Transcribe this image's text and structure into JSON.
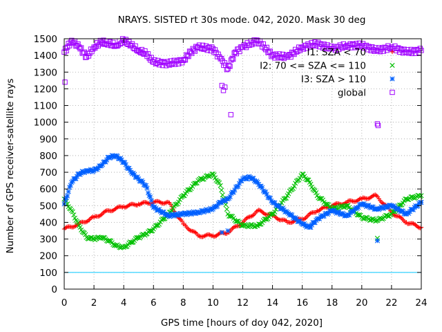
{
  "chart_data": {
    "type": "scatter",
    "title": "NRAYS. SISTED rt 30s mode. 042, 2020. Mask 30 deg",
    "xlabel": "GPS time [hours of doy 042, 2020]",
    "ylabel": "Number of GPS receiver-satellite rays",
    "xlim": [
      0,
      24
    ],
    "ylim": [
      0,
      1500
    ],
    "x_ticks": [
      0,
      2,
      4,
      6,
      8,
      10,
      12,
      14,
      16,
      18,
      20,
      22,
      24
    ],
    "y_ticks": [
      0,
      100,
      200,
      300,
      400,
      500,
      600,
      700,
      800,
      900,
      1000,
      1100,
      1200,
      1300,
      1400,
      1500
    ],
    "grid": true,
    "legend_position": "top-right",
    "reference_line": {
      "value": 100,
      "color": "#00c8ff"
    },
    "series": [
      {
        "name": "I1: SZA < 70",
        "color": "#ff0000",
        "marker": "plus",
        "x": [
          0,
          1,
          2,
          3,
          4,
          5,
          6,
          7,
          8,
          9,
          10,
          11,
          12,
          13,
          14,
          15,
          16,
          17,
          18,
          19,
          20,
          21,
          22,
          23,
          24
        ],
        "y": [
          360,
          390,
          430,
          470,
          495,
          510,
          520,
          520,
          390,
          320,
          320,
          340,
          400,
          470,
          440,
          400,
          420,
          470,
          500,
          520,
          540,
          560,
          460,
          400,
          370
        ]
      },
      {
        "name": "I2: 70 <= SZA <= 110",
        "color": "#00c000",
        "marker": "cross",
        "x": [
          0,
          0.5,
          1,
          1.5,
          2,
          2.5,
          3,
          3.5,
          4,
          4.5,
          5,
          5.5,
          6,
          7,
          8,
          9,
          10,
          10.5,
          11,
          12,
          13,
          14,
          15,
          16,
          16.5,
          17,
          18,
          19,
          20,
          21,
          22,
          23,
          24
        ],
        "y": [
          540,
          470,
          380,
          310,
          300,
          310,
          290,
          260,
          250,
          280,
          310,
          330,
          360,
          450,
          560,
          650,
          690,
          620,
          450,
          380,
          380,
          450,
          560,
          690,
          640,
          560,
          480,
          500,
          430,
          410,
          450,
          540,
          560
        ]
      },
      {
        "name": "I3: SZA > 110",
        "color": "#0060ff",
        "marker": "star",
        "x": [
          0,
          0.5,
          1,
          1.5,
          2,
          2.5,
          3,
          3.5,
          4,
          4.5,
          5,
          5.5,
          6,
          7,
          8,
          9,
          10,
          10.5,
          11,
          12,
          12.5,
          13,
          14,
          15,
          16,
          16.5,
          17,
          18,
          19,
          20,
          21,
          22,
          23,
          24
        ],
        "y": [
          510,
          640,
          690,
          710,
          710,
          740,
          790,
          800,
          760,
          700,
          660,
          620,
          490,
          440,
          450,
          460,
          480,
          520,
          540,
          660,
          670,
          640,
          520,
          460,
          390,
          370,
          420,
          470,
          440,
          510,
          480,
          500,
          450,
          520
        ]
      },
      {
        "name": "global",
        "color": "#a000ff",
        "marker": "square",
        "x": [
          0,
          0.5,
          1,
          1.5,
          2,
          2.5,
          3,
          3.5,
          4,
          4.5,
          5,
          5.5,
          6,
          7,
          8,
          8.5,
          9,
          10,
          10.5,
          11,
          11.5,
          12,
          13,
          14,
          15,
          16,
          17,
          18,
          19,
          20,
          21,
          22,
          23,
          24
        ],
        "y": [
          1420,
          1490,
          1450,
          1390,
          1450,
          1480,
          1470,
          1460,
          1490,
          1460,
          1430,
          1410,
          1360,
          1350,
          1370,
          1420,
          1450,
          1440,
          1380,
          1320,
          1420,
          1450,
          1490,
          1400,
          1390,
          1450,
          1470,
          1440,
          1460,
          1460,
          1430,
          1450,
          1420,
          1430
        ]
      }
    ],
    "outliers": [
      {
        "series": "global",
        "x": 0.05,
        "y": 1240
      },
      {
        "series": "global",
        "x": 10.6,
        "y": 1220
      },
      {
        "series": "global",
        "x": 10.7,
        "y": 1190
      },
      {
        "series": "global",
        "x": 10.8,
        "y": 1210
      },
      {
        "series": "global",
        "x": 11.2,
        "y": 1045
      },
      {
        "series": "global",
        "x": 21.05,
        "y": 990
      },
      {
        "series": "global",
        "x": 21.1,
        "y": 980
      },
      {
        "series": "I2: 70 <= SZA <= 110",
        "x": 21.05,
        "y": 305
      },
      {
        "series": "I3: SZA > 110",
        "x": 21.05,
        "y": 290
      },
      {
        "series": "I3: SZA > 110",
        "x": 10.6,
        "y": 340
      },
      {
        "series": "I3: SZA > 110",
        "x": 11.0,
        "y": 350
      }
    ]
  }
}
